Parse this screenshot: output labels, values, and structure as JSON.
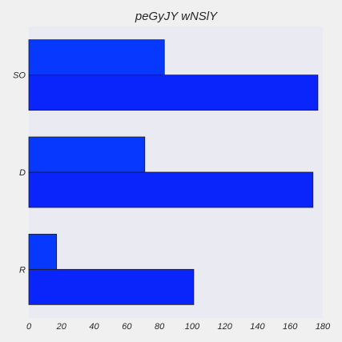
{
  "chart_data": {
    "type": "bar",
    "orientation": "horizontal",
    "title": "peGyJY wNSlY",
    "xlabel": "",
    "ylabel": "",
    "categories": [
      "R",
      "D",
      "SO"
    ],
    "series": [
      {
        "values": [
          101,
          174,
          177
        ]
      },
      {
        "values": [
          17,
          71,
          83
        ]
      }
    ],
    "xlim": [
      0,
      180
    ],
    "xticks": [
      0,
      20,
      40,
      60,
      80,
      100,
      120,
      140,
      160,
      180
    ],
    "grid": false,
    "legend": "none",
    "colors": {
      "plot_bg": "#eaeaf2",
      "page_bg": "#f0f0f0",
      "bar_lower": "#0a25fb",
      "bar_upper": "#0639fd",
      "edge": "#1a1a1a"
    }
  }
}
